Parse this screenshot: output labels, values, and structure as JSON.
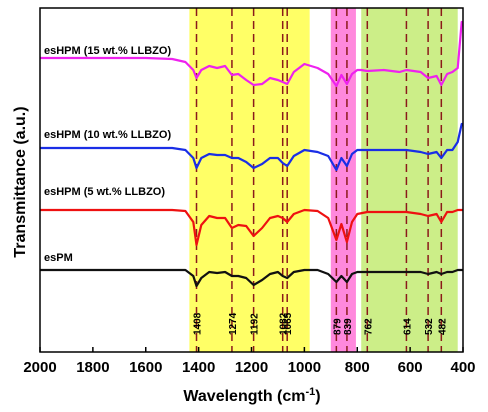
{
  "chart_data": {
    "type": "line",
    "xlabel": "Wavelength (cm",
    "xlabel_sup": "-1",
    "xlabel_end": ")",
    "ylabel": "Transmittance (a.u.)",
    "xlim": [
      2000,
      400
    ],
    "x_reversed": true,
    "x_ticks": [
      2000,
      1800,
      1600,
      1400,
      1200,
      1000,
      800,
      600,
      400
    ],
    "y_ticks": [],
    "grid": false,
    "shaded_regions": [
      {
        "from": 1435,
        "to": 980,
        "color": "#ffff66"
      },
      {
        "from": 900,
        "to": 805,
        "color": "#ff88dd"
      },
      {
        "from": 785,
        "to": 420,
        "color": "#ccee88"
      }
    ],
    "peak_markers": [
      {
        "x": 1408,
        "label": "1408"
      },
      {
        "x": 1274,
        "label": "1274"
      },
      {
        "x": 1192,
        "label": "1192"
      },
      {
        "x": 1082,
        "label": "1082"
      },
      {
        "x": 1065,
        "label": "1065"
      },
      {
        "x": 879,
        "label": "879"
      },
      {
        "x": 839,
        "label": "839"
      },
      {
        "x": 762,
        "label": "762"
      },
      {
        "x": 614,
        "label": "614"
      },
      {
        "x": 532,
        "label": "532"
      },
      {
        "x": 482,
        "label": "482"
      }
    ],
    "series": [
      {
        "name": "esHPM (15 wt.% LLBZO)",
        "color": "#ee22ee",
        "points": [
          [
            2000,
            58
          ],
          [
            1800,
            58
          ],
          [
            1600,
            58
          ],
          [
            1500,
            59
          ],
          [
            1450,
            62
          ],
          [
            1420,
            70
          ],
          [
            1408,
            78
          ],
          [
            1390,
            70
          ],
          [
            1360,
            66
          ],
          [
            1330,
            68
          ],
          [
            1300,
            66
          ],
          [
            1274,
            75
          ],
          [
            1250,
            74
          ],
          [
            1220,
            80
          ],
          [
            1192,
            85
          ],
          [
            1160,
            84
          ],
          [
            1130,
            78
          ],
          [
            1100,
            80
          ],
          [
            1082,
            82
          ],
          [
            1065,
            84
          ],
          [
            1040,
            72
          ],
          [
            1000,
            64
          ],
          [
            950,
            68
          ],
          [
            910,
            74
          ],
          [
            879,
            86
          ],
          [
            860,
            75
          ],
          [
            839,
            84
          ],
          [
            820,
            74
          ],
          [
            800,
            70
          ],
          [
            785,
            70
          ],
          [
            762,
            71
          ],
          [
            700,
            70
          ],
          [
            640,
            72
          ],
          [
            614,
            70
          ],
          [
            560,
            72
          ],
          [
            532,
            78
          ],
          [
            500,
            76
          ],
          [
            482,
            85
          ],
          [
            460,
            74
          ],
          [
            440,
            72
          ],
          [
            420,
            68
          ],
          [
            405,
            22
          ],
          [
            400,
            22
          ]
        ]
      },
      {
        "name": "esHPM (10 wt.% LLBZO)",
        "color": "#1a2ee6",
        "points": [
          [
            2000,
            148
          ],
          [
            1800,
            148
          ],
          [
            1600,
            148
          ],
          [
            1500,
            148
          ],
          [
            1450,
            150
          ],
          [
            1420,
            158
          ],
          [
            1408,
            168
          ],
          [
            1390,
            158
          ],
          [
            1360,
            154
          ],
          [
            1330,
            155
          ],
          [
            1300,
            155
          ],
          [
            1274,
            158
          ],
          [
            1250,
            158
          ],
          [
            1220,
            162
          ],
          [
            1192,
            168
          ],
          [
            1160,
            164
          ],
          [
            1130,
            158
          ],
          [
            1100,
            158
          ],
          [
            1082,
            163
          ],
          [
            1065,
            166
          ],
          [
            1040,
            156
          ],
          [
            1000,
            150
          ],
          [
            950,
            152
          ],
          [
            910,
            156
          ],
          [
            879,
            170
          ],
          [
            860,
            158
          ],
          [
            839,
            166
          ],
          [
            820,
            154
          ],
          [
            800,
            150
          ],
          [
            762,
            150
          ],
          [
            700,
            150
          ],
          [
            614,
            150
          ],
          [
            560,
            152
          ],
          [
            532,
            154
          ],
          [
            500,
            152
          ],
          [
            482,
            158
          ],
          [
            460,
            150
          ],
          [
            440,
            150
          ],
          [
            420,
            142
          ],
          [
            405,
            124
          ],
          [
            400,
            124
          ]
        ]
      },
      {
        "name": "esHPM (5 wt.% LLBZO)",
        "color": "#ee1111",
        "points": [
          [
            2000,
            210
          ],
          [
            1800,
            210
          ],
          [
            1600,
            210
          ],
          [
            1500,
            210
          ],
          [
            1450,
            211
          ],
          [
            1420,
            222
          ],
          [
            1408,
            245
          ],
          [
            1390,
            225
          ],
          [
            1360,
            216
          ],
          [
            1330,
            218
          ],
          [
            1300,
            218
          ],
          [
            1274,
            228
          ],
          [
            1250,
            225
          ],
          [
            1220,
            226
          ],
          [
            1192,
            236
          ],
          [
            1160,
            228
          ],
          [
            1130,
            218
          ],
          [
            1100,
            216
          ],
          [
            1082,
            218
          ],
          [
            1065,
            222
          ],
          [
            1040,
            214
          ],
          [
            1000,
            210
          ],
          [
            950,
            211
          ],
          [
            910,
            218
          ],
          [
            879,
            240
          ],
          [
            860,
            224
          ],
          [
            839,
            242
          ],
          [
            820,
            222
          ],
          [
            800,
            214
          ],
          [
            762,
            212
          ],
          [
            700,
            212
          ],
          [
            614,
            212
          ],
          [
            560,
            214
          ],
          [
            532,
            216
          ],
          [
            500,
            214
          ],
          [
            482,
            222
          ],
          [
            460,
            212
          ],
          [
            440,
            212
          ],
          [
            420,
            210
          ],
          [
            400,
            210
          ]
        ]
      },
      {
        "name": "esPM",
        "color": "#111111",
        "points": [
          [
            2000,
            270
          ],
          [
            1800,
            270
          ],
          [
            1600,
            270
          ],
          [
            1500,
            270
          ],
          [
            1450,
            270
          ],
          [
            1420,
            276
          ],
          [
            1408,
            286
          ],
          [
            1390,
            278
          ],
          [
            1360,
            272
          ],
          [
            1330,
            273
          ],
          [
            1300,
            272
          ],
          [
            1274,
            276
          ],
          [
            1250,
            276
          ],
          [
            1220,
            278
          ],
          [
            1192,
            285
          ],
          [
            1160,
            280
          ],
          [
            1130,
            274
          ],
          [
            1100,
            272
          ],
          [
            1082,
            276
          ],
          [
            1065,
            278
          ],
          [
            1040,
            272
          ],
          [
            1000,
            270
          ],
          [
            950,
            270
          ],
          [
            910,
            274
          ],
          [
            879,
            282
          ],
          [
            860,
            276
          ],
          [
            839,
            282
          ],
          [
            820,
            274
          ],
          [
            800,
            272
          ],
          [
            762,
            272
          ],
          [
            700,
            272
          ],
          [
            614,
            272
          ],
          [
            560,
            272
          ],
          [
            532,
            274
          ],
          [
            500,
            272
          ],
          [
            482,
            274
          ],
          [
            460,
            272
          ],
          [
            440,
            272
          ],
          [
            420,
            270
          ],
          [
            400,
            270
          ]
        ]
      }
    ]
  }
}
